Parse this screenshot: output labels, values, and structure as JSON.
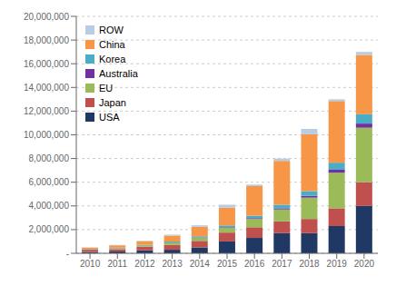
{
  "chart_data": {
    "type": "bar",
    "stacked": true,
    "categories": [
      2010,
      2011,
      2012,
      2013,
      2014,
      2015,
      2016,
      2017,
      2018,
      2019,
      2020
    ],
    "series": [
      {
        "name": "USA",
        "color": "#1f3864",
        "values": [
          100000,
          150000,
          250000,
          300000,
          500000,
          1000000,
          1300000,
          1700000,
          1700000,
          2300000,
          4000000
        ]
      },
      {
        "name": "Japan",
        "color": "#c0504d",
        "values": [
          200000,
          200000,
          300000,
          400000,
          550000,
          750000,
          900000,
          1000000,
          1200000,
          1500000,
          2000000
        ]
      },
      {
        "name": "EU",
        "color": "#9bbb59",
        "values": [
          50000,
          80000,
          100000,
          200000,
          250000,
          400000,
          700000,
          1000000,
          1800000,
          3000000,
          4600000
        ]
      },
      {
        "name": "Australia",
        "color": "#7030a0",
        "values": [
          10000,
          15000,
          20000,
          25000,
          35000,
          50000,
          70000,
          100000,
          150000,
          250000,
          350000
        ]
      },
      {
        "name": "Korea",
        "color": "#4bacc6",
        "values": [
          20000,
          30000,
          50000,
          70000,
          100000,
          150000,
          200000,
          300000,
          400000,
          600000,
          800000
        ]
      },
      {
        "name": "China",
        "color": "#f79646",
        "values": [
          100000,
          200000,
          300000,
          500000,
          800000,
          1500000,
          2500000,
          3700000,
          4800000,
          5200000,
          5000000
        ]
      },
      {
        "name": "ROW",
        "color": "#b8cce4",
        "values": [
          20000,
          30000,
          50000,
          80000,
          130000,
          250000,
          130000,
          200000,
          450000,
          150000,
          250000
        ]
      }
    ],
    "ylim": [
      0,
      20000000
    ],
    "yticks": [
      {
        "value": 0,
        "label": "-"
      },
      {
        "value": 2000000,
        "label": "2,000,000"
      },
      {
        "value": 4000000,
        "label": "4,000,000"
      },
      {
        "value": 6000000,
        "label": "6,000,000"
      },
      {
        "value": 8000000,
        "label": "8,000,000"
      },
      {
        "value": 10000000,
        "label": "10,000,000"
      },
      {
        "value": 12000000,
        "label": "12,000,000"
      },
      {
        "value": 14000000,
        "label": "14,000,000"
      },
      {
        "value": 16000000,
        "label": "16,000,000"
      },
      {
        "value": 18000000,
        "label": "18,000,000"
      },
      {
        "value": 20000000,
        "label": "20,000,000"
      }
    ],
    "grid": true,
    "legend": "upper left"
  }
}
